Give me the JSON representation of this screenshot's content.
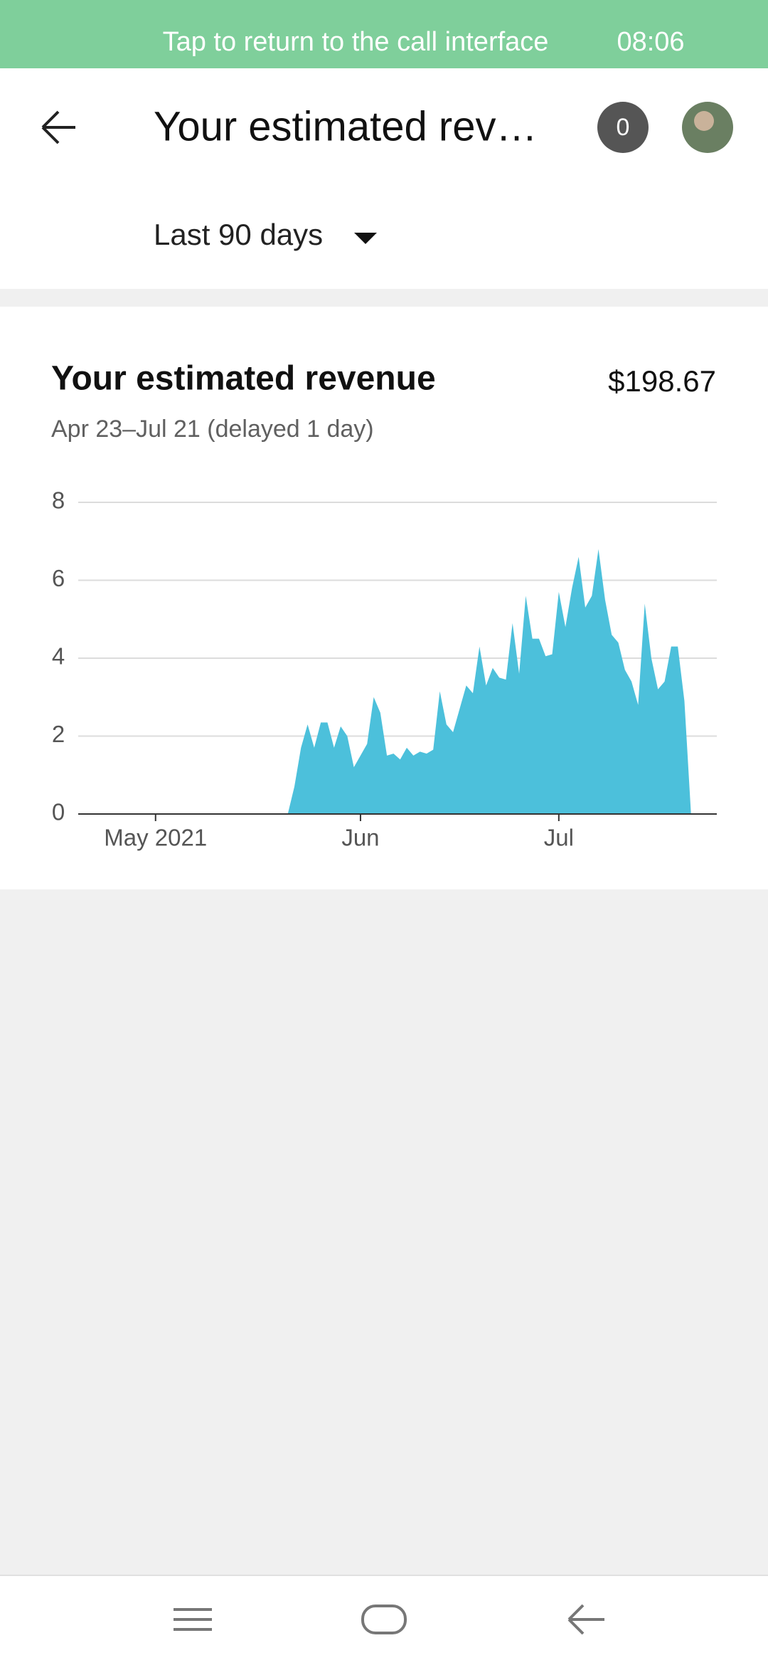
{
  "status_bar": {
    "banner": "Tap to return to the call interface",
    "time": "08:06"
  },
  "header": {
    "title": "Your estimated rev…",
    "badge": "0"
  },
  "filter": {
    "label": "Last 90 days"
  },
  "card": {
    "title": "Your estimated revenue",
    "total": "$198.67",
    "subtitle": "Apr 23–Jul 21 (delayed 1 day)"
  },
  "chart_data": {
    "type": "area",
    "color": "#4cc0db",
    "values": [
      0,
      0,
      0,
      0,
      0,
      0,
      0,
      0,
      0,
      0,
      0,
      0,
      0,
      0,
      0,
      0,
      0,
      0,
      0,
      0,
      0,
      0,
      0,
      0,
      0,
      0,
      0,
      0,
      0,
      0.7,
      1.7,
      2.3,
      1.7,
      2.35,
      2.35,
      1.7,
      2.25,
      2.0,
      1.2,
      1.5,
      1.8,
      3.0,
      2.6,
      1.5,
      1.55,
      1.4,
      1.7,
      1.5,
      1.6,
      1.55,
      1.65,
      3.15,
      2.3,
      2.1,
      2.7,
      3.3,
      3.1,
      4.3,
      3.3,
      3.75,
      3.5,
      3.45,
      4.9,
      3.6,
      5.6,
      4.5,
      4.5,
      4.05,
      4.1,
      5.7,
      4.8,
      5.8,
      6.6,
      5.3,
      5.6,
      6.8,
      5.5,
      4.6,
      4.4,
      3.7,
      3.4,
      2.8,
      5.4,
      4.0,
      3.2,
      3.4,
      4.3,
      4.3,
      2.9,
      0
    ],
    "xlim": [
      -3.7,
      92.9
    ],
    "xticks": [
      {
        "value": 8,
        "label": "May 2021"
      },
      {
        "value": 39,
        "label": "Jun"
      },
      {
        "value": 69,
        "label": "Jul"
      }
    ],
    "ylim": [
      0,
      8
    ],
    "yticks": [
      0,
      2,
      4,
      6,
      8
    ],
    "grid": true
  }
}
